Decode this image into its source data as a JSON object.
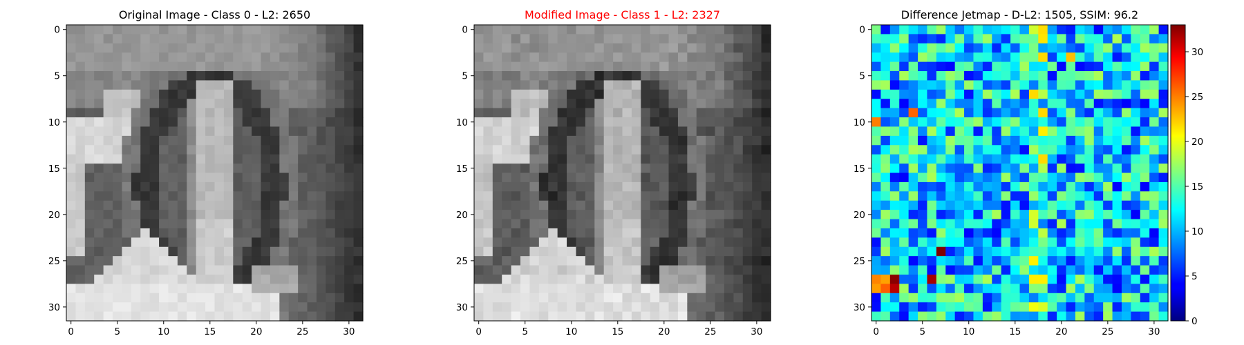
{
  "chart_data": [
    {
      "type": "heatmap",
      "title": "Original Image - Class 0 - L2: 2650",
      "title_color": "#000000",
      "colormap": "gray",
      "grid": false,
      "xlim": [
        -0.5,
        31.5
      ],
      "ylim": [
        31.5,
        -0.5
      ],
      "xticks": [
        0,
        5,
        10,
        15,
        20,
        25,
        30
      ],
      "yticks": [
        0,
        5,
        10,
        15,
        20,
        25,
        30
      ],
      "x_tick_labels": [
        "0",
        "5",
        "10",
        "15",
        "20",
        "25",
        "30"
      ],
      "y_tick_labels": [
        "0",
        "5",
        "10",
        "15",
        "20",
        "25",
        "30"
      ]
    },
    {
      "type": "heatmap",
      "title": "Modified Image - Class 1 - L2: 2327",
      "title_color": "#ff0000",
      "colormap": "gray",
      "grid": false,
      "xlim": [
        -0.5,
        31.5
      ],
      "ylim": [
        31.5,
        -0.5
      ],
      "xticks": [
        0,
        5,
        10,
        15,
        20,
        25,
        30
      ],
      "yticks": [
        0,
        5,
        10,
        15,
        20,
        25,
        30
      ],
      "x_tick_labels": [
        "0",
        "5",
        "10",
        "15",
        "20",
        "25",
        "30"
      ],
      "y_tick_labels": [
        "0",
        "5",
        "10",
        "15",
        "20",
        "25",
        "30"
      ]
    },
    {
      "type": "heatmap",
      "title": "Difference Jetmap - D-L2: 1505, SSIM: 96.2",
      "title_color": "#000000",
      "colormap": "jet",
      "grid": false,
      "xlim": [
        -0.5,
        31.5
      ],
      "ylim": [
        31.5,
        -0.5
      ],
      "xticks": [
        0,
        5,
        10,
        15,
        20,
        25,
        30
      ],
      "yticks": [
        0,
        5,
        10,
        15,
        20,
        25,
        30
      ],
      "x_tick_labels": [
        "0",
        "5",
        "10",
        "15",
        "20",
        "25",
        "30"
      ],
      "y_tick_labels": [
        "0",
        "5",
        "10",
        "15",
        "20",
        "25",
        "30"
      ],
      "colorbar": {
        "range": [
          0,
          33
        ],
        "ticks": [
          0,
          5,
          10,
          15,
          20,
          25,
          30
        ],
        "tick_labels": [
          "0",
          "5",
          "10",
          "15",
          "20",
          "25",
          "30"
        ]
      }
    }
  ]
}
